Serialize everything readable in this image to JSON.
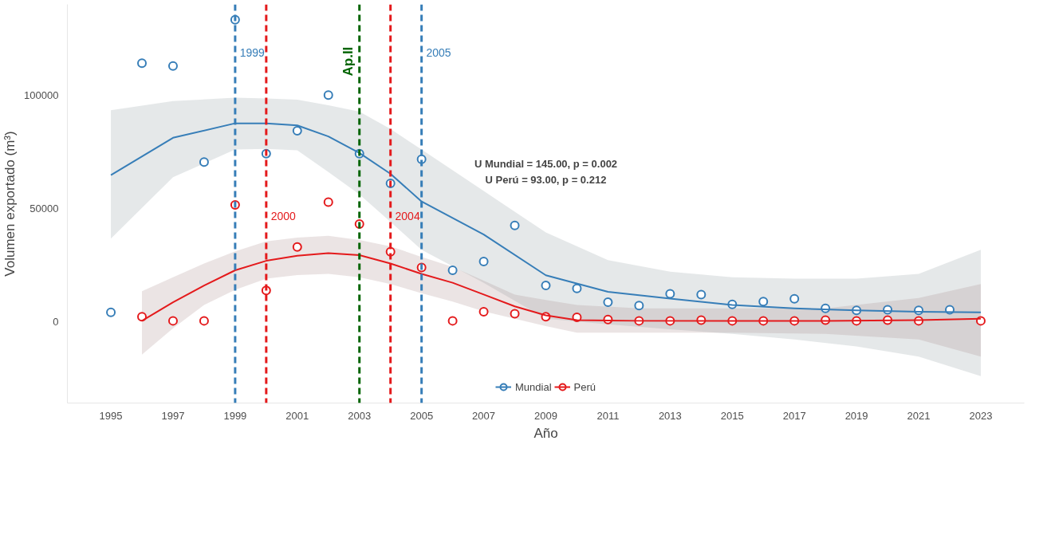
{
  "chart_data": {
    "type": "scatter",
    "xlabel": "Año",
    "ylabel": "Volumen exportado (m³)",
    "x": [
      1995,
      1996,
      1997,
      1998,
      1999,
      2000,
      2001,
      2002,
      2003,
      2004,
      2005,
      2006,
      2007,
      2008,
      2009,
      2010,
      2011,
      2012,
      2013,
      2014,
      2015,
      2016,
      2017,
      2018,
      2019,
      2020,
      2021,
      2022,
      2023
    ],
    "series": [
      {
        "name": "Mundial",
        "color": "#377eb8",
        "values": [
          4000,
          114000,
          112800,
          70400,
          133200,
          74100,
          84200,
          100000,
          74100,
          61000,
          71600,
          22600,
          26500,
          42400,
          15900,
          14600,
          8500,
          7000,
          12200,
          11900,
          7600,
          8800,
          10000,
          5800,
          4900,
          5200,
          4900,
          5200,
          null
        ]
      },
      {
        "name": "Perú",
        "color": "#e41a1c",
        "values": [
          null,
          2100,
          300,
          300,
          51500,
          13700,
          32900,
          52700,
          43000,
          30800,
          23800,
          300,
          4300,
          3400,
          2100,
          1800,
          900,
          300,
          300,
          600,
          300,
          300,
          300,
          600,
          300,
          600,
          300,
          null,
          300
        ]
      },
      {
        "type": "line",
        "marker": "none",
        "color": "#377eb8",
        "x": [
          1995,
          1997,
          1999,
          2000,
          2001,
          2002,
          2003,
          2004,
          2005,
          2007,
          2009,
          2011,
          2013,
          2015,
          2017,
          2019,
          2021,
          2023
        ],
        "values": [
          64600,
          81100,
          87500,
          87500,
          86600,
          81700,
          74400,
          65200,
          53000,
          38400,
          20400,
          13100,
          10100,
          7300,
          5800,
          4900,
          4300,
          4000
        ],
        "upper": [
          93300,
          97300,
          98800,
          98500,
          97900,
          95500,
          92700,
          85000,
          75900,
          57600,
          39300,
          27100,
          22000,
          19500,
          18900,
          18900,
          21000,
          31700
        ],
        "lower": [
          36600,
          63700,
          75900,
          76200,
          75600,
          66000,
          56100,
          44000,
          31700,
          17100,
          1200,
          -1200,
          -3400,
          -5500,
          -7900,
          -11000,
          -15500,
          -24100
        ]
      },
      {
        "type": "line",
        "marker": "none",
        "color": "#e41a1c",
        "x": [
          1996,
          1997,
          1998,
          1999,
          2000,
          2001,
          2002,
          2003,
          2004,
          2005,
          2006,
          2007,
          2008,
          2009,
          2010,
          2012,
          2015,
          2018,
          2021,
          2023
        ],
        "values": [
          300,
          8500,
          15900,
          22600,
          26800,
          29000,
          30200,
          29300,
          25600,
          21000,
          17100,
          11900,
          6700,
          2700,
          600,
          300,
          300,
          300,
          600,
          1200
        ],
        "upper": [
          13400,
          19500,
          25600,
          31000,
          35400,
          37000,
          37800,
          36000,
          33200,
          28500,
          24100,
          18000,
          11900,
          9500,
          7300,
          5800,
          5800,
          5800,
          10400,
          16500
        ],
        "lower": [
          -14600,
          -3000,
          7300,
          14000,
          18900,
          20500,
          21000,
          19500,
          16500,
          12500,
          8800,
          4500,
          1200,
          -2000,
          -4900,
          -4900,
          -4900,
          -5500,
          -7900,
          -15500
        ]
      }
    ],
    "xlim": [
      1993.6,
      2024.4
    ],
    "xticks": [
      1995,
      1997,
      1999,
      2001,
      2003,
      2005,
      2007,
      2009,
      2011,
      2013,
      2015,
      2017,
      2019,
      2021,
      2023
    ],
    "ylim": [
      -36000,
      140000
    ],
    "yticks": [
      0,
      50000,
      100000
    ],
    "ref_lines": [
      {
        "axis": "x",
        "value": 1999,
        "label": "1999",
        "color": "#377eb8",
        "line_style": "dashed"
      },
      {
        "axis": "x",
        "value": 2000,
        "label": "2000",
        "color": "#e41a1c",
        "line_style": "dashed"
      },
      {
        "axis": "x",
        "value": 2003,
        "label": "Ap.II",
        "color": "#006400",
        "line_style": "dashed"
      },
      {
        "axis": "x",
        "value": 2004,
        "label": "2004",
        "color": "#e41a1c",
        "line_style": "dashed"
      },
      {
        "axis": "x",
        "value": 2005,
        "label": "2005",
        "color": "#377eb8",
        "line_style": "dashed"
      }
    ],
    "annotations": [
      "U Mundial = 145.00, p = 0.002",
      "U Perú = 93.00, p = 0.212"
    ],
    "marker": "circle",
    "grid": false,
    "legend": "bottom"
  }
}
